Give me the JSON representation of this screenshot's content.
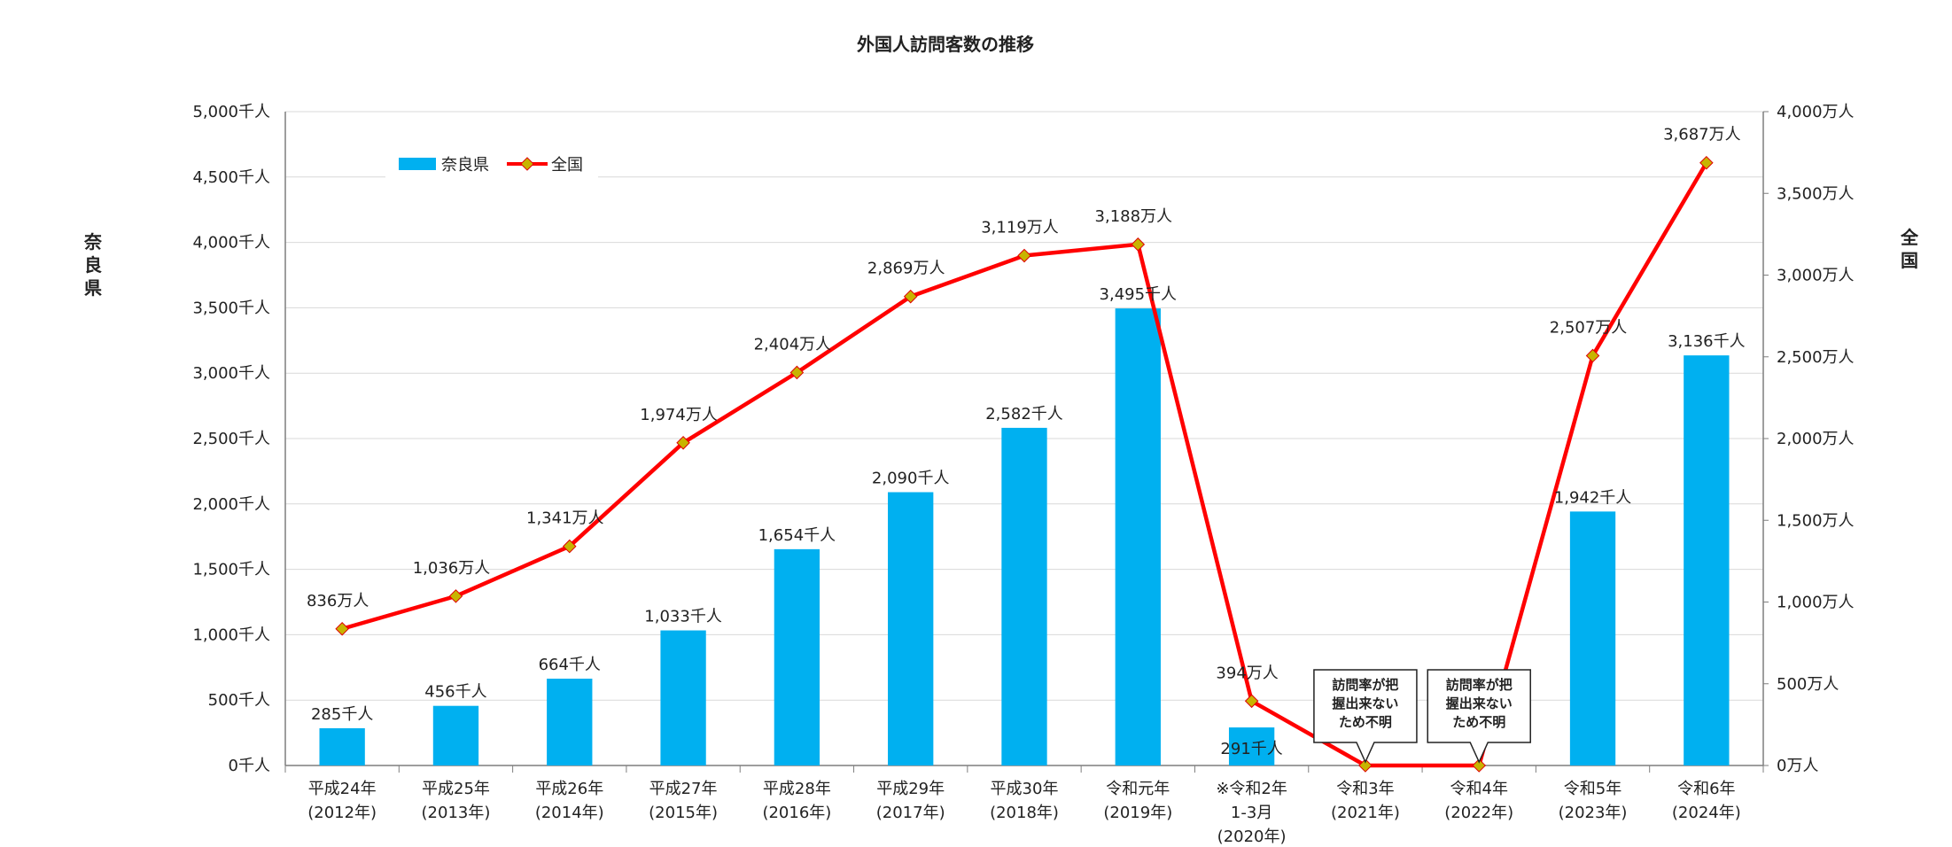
{
  "chart_data": {
    "type": "bar+line",
    "title": "外国人訪問客数の推移",
    "left_axis_label": "奈良県",
    "right_axis_label": "全国",
    "left_ticks": [
      "0千人",
      "500千人",
      "1,000千人",
      "1,500千人",
      "2,000千人",
      "2,500千人",
      "3,000千人",
      "3,500千人",
      "4,000千人",
      "4,500千人",
      "5,000千人"
    ],
    "right_ticks": [
      "0万人",
      "500万人",
      "1,000万人",
      "1,500万人",
      "2,000万人",
      "2,500万人",
      "3,000万人",
      "3,500万人",
      "4,000万人"
    ],
    "left_ylim": [
      0,
      5000
    ],
    "right_ylim": [
      0,
      4000
    ],
    "categories": [
      [
        "平成24年",
        "(2012年)"
      ],
      [
        "平成25年",
        "(2013年)"
      ],
      [
        "平成26年",
        "(2014年)"
      ],
      [
        "平成27年",
        "(2015年)"
      ],
      [
        "平成28年",
        "(2016年)"
      ],
      [
        "平成29年",
        "(2017年)"
      ],
      [
        "平成30年",
        "(2018年)"
      ],
      [
        "令和元年",
        "(2019年)"
      ],
      [
        "※令和2年",
        "1-3月",
        "(2020年)"
      ],
      [
        "令和3年",
        "(2021年)"
      ],
      [
        "令和4年",
        "(2022年)"
      ],
      [
        "令和5年",
        "(2023年)"
      ],
      [
        "令和6年",
        "(2024年)"
      ]
    ],
    "series": [
      {
        "name": "奈良県",
        "kind": "bar",
        "axis": "left",
        "color": "#00b0f0",
        "values": [
          285,
          456,
          664,
          1033,
          1654,
          2090,
          2582,
          3495,
          291,
          null,
          null,
          1942,
          3136
        ],
        "labels": [
          "285千人",
          "456千人",
          "664千人",
          "1,033千人",
          "1,654千人",
          "2,090千人",
          "2,582千人",
          "3,495千人",
          "291千人",
          "",
          "",
          "1,942千人",
          "3,136千人"
        ]
      },
      {
        "name": "全国",
        "kind": "line",
        "axis": "right",
        "color": "#ff0000",
        "marker_color": "#c8b400",
        "values": [
          836,
          1036,
          1341,
          1974,
          2404,
          2869,
          3119,
          3188,
          394,
          0,
          0,
          2507,
          3687
        ],
        "labels": [
          "836万人",
          "1,036万人",
          "1,341万人",
          "1,974万人",
          "2,404万人",
          "2,869万人",
          "3,119万人",
          "3,188万人",
          "394万人",
          "",
          "",
          "2,507万人",
          "3,687万人"
        ]
      }
    ],
    "callouts": [
      {
        "category_index": 9,
        "lines": [
          "訪問率が把",
          "握出来ない",
          "ため不明"
        ]
      },
      {
        "category_index": 10,
        "lines": [
          "訪問率が把",
          "握出来ない",
          "ため不明"
        ]
      }
    ],
    "legend_position": "top-left",
    "grid": true
  }
}
